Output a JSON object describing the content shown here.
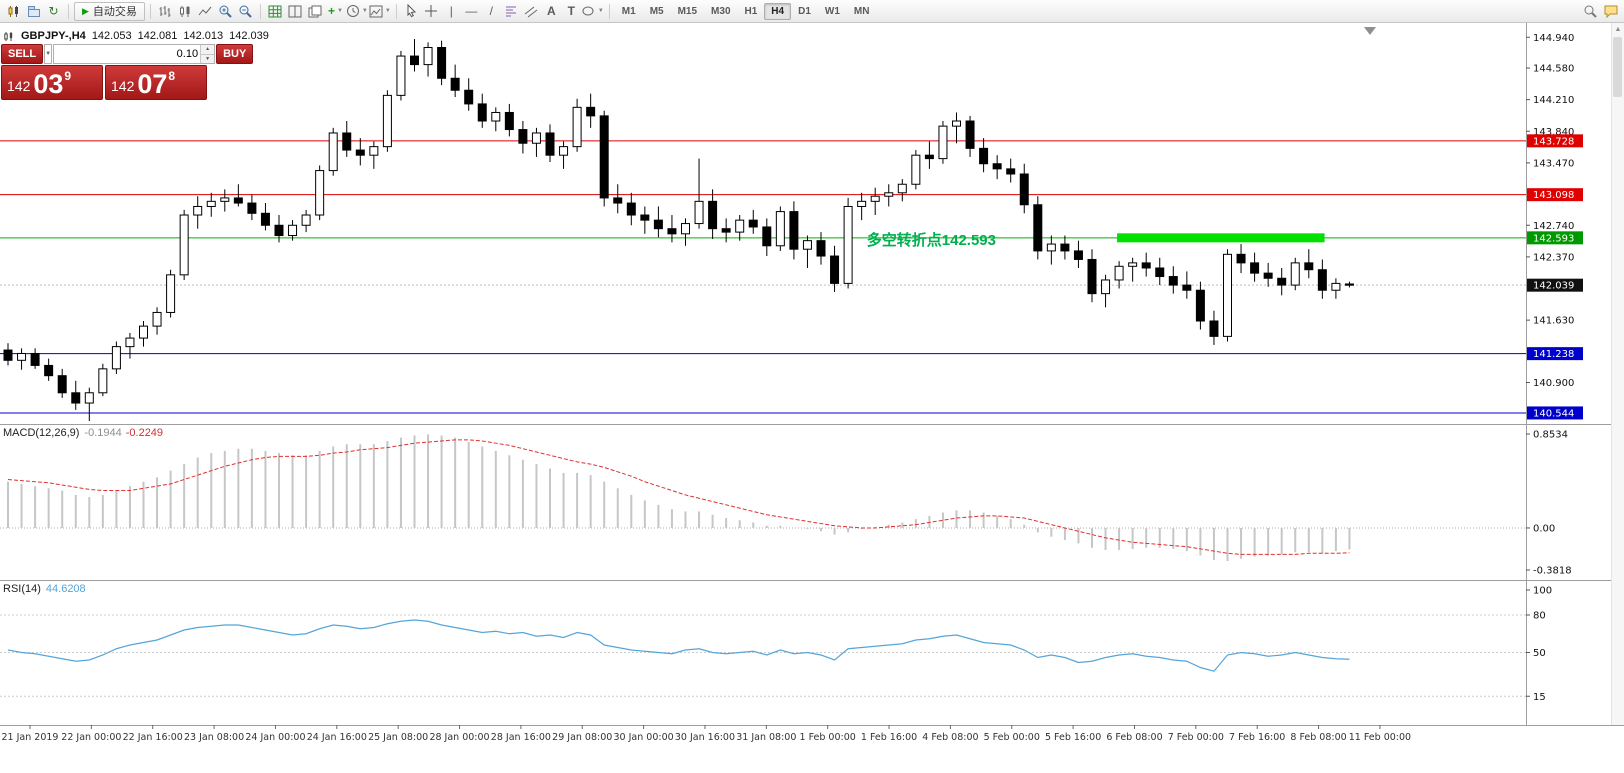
{
  "toolbar": {
    "auto_trading_label": "自动交易",
    "timeframes": [
      "M1",
      "M5",
      "M15",
      "M30",
      "H1",
      "H4",
      "D1",
      "W1",
      "MN"
    ],
    "active_timeframe": "H4"
  },
  "chart_header": {
    "symbol_period": "GBPJPY-,H4",
    "open": "142.053",
    "high": "142.081",
    "low": "142.013",
    "close": "142.039"
  },
  "trade_panel": {
    "sell_label": "SELL",
    "buy_label": "BUY",
    "volume": "0.10",
    "bid": {
      "prefix": "142",
      "big": "03",
      "sup": "9"
    },
    "ask": {
      "prefix": "142",
      "big": "07",
      "sup": "8"
    },
    "colors": {
      "light": "#cf3a3a",
      "dark": "#a31818",
      "border": "#871010"
    }
  },
  "chart_data": {
    "type": "candlestick",
    "symbol": "GBPJPY-",
    "timeframe": "H4",
    "price_range": {
      "max": 145.06,
      "min": 140.52
    },
    "current_price": 142.039,
    "scale_ticks": [
      144.94,
      144.58,
      144.21,
      143.84,
      143.47,
      142.74,
      142.37,
      141.63,
      140.9
    ],
    "price_badges": [
      {
        "value": "143.728",
        "bg": "#e00000"
      },
      {
        "value": "143.098",
        "bg": "#e00000"
      },
      {
        "value": "142.593",
        "bg": "#009900"
      },
      {
        "value": "142.039",
        "bg": "#101010"
      },
      {
        "value": "141.238",
        "bg": "#0000cd"
      },
      {
        "value": "140.544",
        "bg": "#0000cd"
      }
    ],
    "hlines": [
      {
        "price": 143.728,
        "color": "#d90000"
      },
      {
        "price": 143.098,
        "color": "#d90000"
      },
      {
        "price": 142.593,
        "color": "#00b300"
      },
      {
        "price": 141.238,
        "color": "#0000cc"
      },
      {
        "price": 140.544,
        "color": "#0000cc"
      }
    ],
    "green_zone": {
      "price": 142.593,
      "x_start_frac": 0.732,
      "x_end_frac": 0.868,
      "color": "#00e100"
    },
    "annotation": {
      "text": "多空转折点142.593",
      "color": "#00b050",
      "x_frac": 0.568,
      "price": 142.593
    },
    "candles": [
      [
        141.28,
        141.36,
        141.1,
        141.16
      ],
      [
        141.16,
        141.3,
        141.05,
        141.24
      ],
      [
        141.24,
        141.3,
        141.06,
        141.1
      ],
      [
        141.1,
        141.18,
        140.92,
        140.98
      ],
      [
        140.98,
        141.06,
        140.72,
        140.78
      ],
      [
        140.78,
        140.92,
        140.58,
        140.66
      ],
      [
        140.66,
        140.84,
        140.45,
        140.78
      ],
      [
        140.78,
        141.12,
        140.74,
        141.06
      ],
      [
        141.06,
        141.38,
        141.0,
        141.32
      ],
      [
        141.32,
        141.48,
        141.18,
        141.42
      ],
      [
        141.42,
        141.62,
        141.32,
        141.56
      ],
      [
        141.56,
        141.78,
        141.46,
        141.72
      ],
      [
        141.72,
        142.22,
        141.66,
        142.16
      ],
      [
        142.16,
        142.92,
        142.1,
        142.86
      ],
      [
        142.86,
        143.08,
        142.7,
        142.96
      ],
      [
        142.96,
        143.12,
        142.84,
        143.02
      ],
      [
        143.02,
        143.16,
        142.9,
        143.06
      ],
      [
        143.06,
        143.22,
        142.96,
        143.0
      ],
      [
        143.0,
        143.1,
        142.8,
        142.88
      ],
      [
        142.88,
        143.0,
        142.68,
        142.74
      ],
      [
        142.74,
        142.86,
        142.54,
        142.62
      ],
      [
        142.62,
        142.8,
        142.56,
        142.74
      ],
      [
        142.74,
        142.92,
        142.66,
        142.86
      ],
      [
        142.86,
        143.44,
        142.8,
        143.38
      ],
      [
        143.38,
        143.88,
        143.32,
        143.82
      ],
      [
        143.82,
        143.96,
        143.54,
        143.62
      ],
      [
        143.62,
        143.76,
        143.44,
        143.56
      ],
      [
        143.56,
        143.72,
        143.4,
        143.66
      ],
      [
        143.66,
        144.32,
        143.6,
        144.26
      ],
      [
        144.26,
        144.78,
        144.2,
        144.72
      ],
      [
        144.72,
        144.92,
        144.54,
        144.62
      ],
      [
        144.62,
        144.88,
        144.48,
        144.82
      ],
      [
        144.82,
        144.9,
        144.38,
        144.46
      ],
      [
        144.46,
        144.62,
        144.24,
        144.32
      ],
      [
        144.32,
        144.46,
        144.08,
        144.16
      ],
      [
        144.16,
        144.28,
        143.88,
        143.96
      ],
      [
        143.96,
        144.12,
        143.84,
        144.06
      ],
      [
        144.06,
        144.16,
        143.78,
        143.86
      ],
      [
        143.86,
        143.96,
        143.58,
        143.7
      ],
      [
        143.7,
        143.88,
        143.54,
        143.82
      ],
      [
        143.82,
        143.92,
        143.48,
        143.56
      ],
      [
        143.56,
        143.72,
        143.4,
        143.66
      ],
      [
        143.66,
        144.22,
        143.6,
        144.12
      ],
      [
        144.12,
        144.28,
        143.88,
        144.02
      ],
      [
        144.02,
        144.08,
        142.96,
        143.06
      ],
      [
        143.06,
        143.22,
        142.88,
        143.0
      ],
      [
        143.0,
        143.12,
        142.74,
        142.86
      ],
      [
        142.86,
        142.96,
        142.64,
        142.8
      ],
      [
        142.8,
        142.96,
        142.6,
        142.7
      ],
      [
        142.7,
        142.86,
        142.54,
        142.64
      ],
      [
        142.64,
        142.82,
        142.5,
        142.76
      ],
      [
        142.76,
        143.52,
        142.7,
        143.02
      ],
      [
        143.02,
        143.16,
        142.58,
        142.7
      ],
      [
        142.7,
        142.82,
        142.54,
        142.66
      ],
      [
        142.66,
        142.86,
        142.56,
        142.8
      ],
      [
        142.8,
        142.92,
        142.64,
        142.72
      ],
      [
        142.72,
        142.82,
        142.38,
        142.5
      ],
      [
        142.5,
        142.96,
        142.44,
        142.9
      ],
      [
        142.9,
        143.02,
        142.34,
        142.46
      ],
      [
        142.46,
        142.62,
        142.24,
        142.56
      ],
      [
        142.56,
        142.66,
        142.28,
        142.38
      ],
      [
        142.38,
        142.5,
        141.96,
        142.06
      ],
      [
        142.06,
        143.06,
        142.0,
        142.96
      ],
      [
        142.96,
        143.12,
        142.8,
        143.02
      ],
      [
        143.02,
        143.18,
        142.86,
        143.08
      ],
      [
        143.08,
        143.22,
        142.96,
        143.12
      ],
      [
        143.12,
        143.28,
        143.02,
        143.22
      ],
      [
        143.22,
        143.62,
        143.16,
        143.56
      ],
      [
        143.56,
        143.72,
        143.4,
        143.52
      ],
      [
        143.52,
        143.96,
        143.46,
        143.9
      ],
      [
        143.9,
        144.06,
        143.7,
        143.96
      ],
      [
        143.96,
        144.02,
        143.54,
        143.64
      ],
      [
        143.64,
        143.76,
        143.36,
        143.46
      ],
      [
        143.46,
        143.56,
        143.28,
        143.4
      ],
      [
        143.4,
        143.52,
        143.24,
        143.34
      ],
      [
        143.34,
        143.46,
        142.88,
        142.98
      ],
      [
        142.98,
        143.08,
        142.34,
        142.44
      ],
      [
        142.44,
        142.62,
        142.28,
        142.52
      ],
      [
        142.52,
        142.62,
        142.34,
        142.44
      ],
      [
        142.44,
        142.56,
        142.24,
        142.34
      ],
      [
        142.34,
        142.46,
        141.84,
        141.94
      ],
      [
        141.94,
        142.16,
        141.78,
        142.1
      ],
      [
        142.1,
        142.32,
        142.0,
        142.26
      ],
      [
        142.26,
        142.36,
        142.08,
        142.3
      ],
      [
        142.3,
        142.42,
        142.14,
        142.24
      ],
      [
        142.24,
        142.36,
        142.04,
        142.14
      ],
      [
        142.14,
        142.26,
        141.94,
        142.04
      ],
      [
        142.04,
        142.2,
        141.88,
        141.98
      ],
      [
        141.98,
        142.08,
        141.52,
        141.62
      ],
      [
        141.62,
        141.74,
        141.34,
        141.44
      ],
      [
        141.44,
        142.46,
        141.38,
        142.4
      ],
      [
        142.4,
        142.52,
        142.18,
        142.3
      ],
      [
        142.3,
        142.42,
        142.08,
        142.18
      ],
      [
        142.18,
        142.3,
        142.02,
        142.12
      ],
      [
        142.12,
        142.24,
        141.92,
        142.04
      ],
      [
        142.04,
        142.36,
        141.98,
        142.3
      ],
      [
        142.3,
        142.46,
        142.12,
        142.22
      ],
      [
        142.22,
        142.34,
        141.88,
        141.98
      ],
      [
        141.98,
        142.12,
        141.88,
        142.06
      ],
      [
        142.053,
        142.081,
        142.013,
        142.039
      ]
    ],
    "macd": {
      "label": "MACD(12,26,9)",
      "value_main": "-0.1944",
      "value_signal": "-0.2249",
      "range": {
        "max": 0.8534,
        "min": -0.3818
      },
      "scale_labels": [
        "0.8534",
        "0.00",
        "-0.3818"
      ],
      "hist_color": "#c6c6c6",
      "signal_color": "#e03030",
      "histogram": [
        0.42,
        0.4,
        0.38,
        0.36,
        0.34,
        0.3,
        0.28,
        0.3,
        0.34,
        0.38,
        0.42,
        0.46,
        0.52,
        0.58,
        0.64,
        0.68,
        0.7,
        0.72,
        0.72,
        0.7,
        0.68,
        0.66,
        0.66,
        0.7,
        0.74,
        0.76,
        0.76,
        0.76,
        0.79,
        0.82,
        0.84,
        0.85,
        0.84,
        0.82,
        0.78,
        0.74,
        0.7,
        0.66,
        0.62,
        0.58,
        0.54,
        0.5,
        0.5,
        0.48,
        0.42,
        0.36,
        0.3,
        0.25,
        0.21,
        0.17,
        0.15,
        0.15,
        0.12,
        0.09,
        0.07,
        0.05,
        0.02,
        0.02,
        0.0,
        -0.01,
        -0.03,
        -0.06,
        -0.04,
        -0.01,
        0.01,
        0.03,
        0.05,
        0.08,
        0.11,
        0.14,
        0.16,
        0.16,
        0.14,
        0.11,
        0.08,
        0.03,
        -0.04,
        -0.08,
        -0.11,
        -0.14,
        -0.18,
        -0.2,
        -0.2,
        -0.19,
        -0.18,
        -0.18,
        -0.19,
        -0.21,
        -0.25,
        -0.29,
        -0.3,
        -0.28,
        -0.26,
        -0.25,
        -0.24,
        -0.22,
        -0.22,
        -0.23,
        -0.21,
        -0.1944
      ],
      "signal": [
        0.44,
        0.43,
        0.42,
        0.41,
        0.39,
        0.37,
        0.35,
        0.34,
        0.34,
        0.34,
        0.36,
        0.38,
        0.4,
        0.44,
        0.48,
        0.52,
        0.56,
        0.59,
        0.62,
        0.64,
        0.65,
        0.65,
        0.65,
        0.66,
        0.68,
        0.69,
        0.71,
        0.72,
        0.73,
        0.75,
        0.77,
        0.78,
        0.79,
        0.8,
        0.8,
        0.79,
        0.77,
        0.75,
        0.72,
        0.69,
        0.66,
        0.63,
        0.6,
        0.58,
        0.55,
        0.51,
        0.47,
        0.42,
        0.38,
        0.34,
        0.3,
        0.27,
        0.24,
        0.21,
        0.18,
        0.15,
        0.12,
        0.1,
        0.08,
        0.06,
        0.04,
        0.02,
        0.01,
        0.0,
        0.0,
        0.01,
        0.02,
        0.03,
        0.05,
        0.07,
        0.09,
        0.1,
        0.11,
        0.11,
        0.1,
        0.09,
        0.06,
        0.03,
        0.0,
        -0.03,
        -0.06,
        -0.09,
        -0.11,
        -0.13,
        -0.14,
        -0.15,
        -0.16,
        -0.17,
        -0.19,
        -0.21,
        -0.23,
        -0.24,
        -0.24,
        -0.24,
        -0.24,
        -0.24,
        -0.23,
        -0.23,
        -0.23,
        -0.2249
      ]
    },
    "rsi": {
      "label": "RSI(14)",
      "value": "44.6208",
      "color": "#55a5d9",
      "levels": [
        80,
        50,
        15
      ],
      "scale_labels": [
        "100",
        "80",
        "50",
        "15"
      ],
      "values": [
        52,
        50,
        49,
        47,
        45,
        43,
        44,
        48,
        53,
        56,
        58,
        60,
        64,
        68,
        70,
        71,
        72,
        72,
        70,
        68,
        66,
        64,
        65,
        69,
        72,
        71,
        69,
        70,
        73,
        75,
        76,
        75,
        72,
        70,
        68,
        66,
        67,
        65,
        66,
        63,
        64,
        62,
        66,
        64,
        56,
        54,
        52,
        51,
        50,
        49,
        52,
        53,
        50,
        49,
        50,
        51,
        48,
        52,
        49,
        50,
        48,
        44,
        53,
        54,
        55,
        56,
        57,
        60,
        61,
        63,
        64,
        61,
        58,
        57,
        56,
        52,
        46,
        48,
        46,
        42,
        43,
        46,
        48,
        49,
        47,
        46,
        44,
        43,
        38,
        35,
        48,
        50,
        49,
        47,
        48,
        50,
        48,
        46,
        45,
        44.62
      ]
    },
    "time_labels": [
      "21 Jan 2019",
      "22 Jan 00:00",
      "22 Jan 16:00",
      "23 Jan 08:00",
      "24 Jan 00:00",
      "24 Jan 16:00",
      "25 Jan 08:00",
      "28 Jan 00:00",
      "28 Jan 16:00",
      "29 Jan 08:00",
      "30 Jan 00:00",
      "30 Jan 16:00",
      "31 Jan 08:00",
      "1 Feb 00:00",
      "1 Feb 16:00",
      "4 Feb 08:00",
      "5 Feb 00:00",
      "5 Feb 16:00",
      "6 Feb 08:00",
      "7 Feb 00:00",
      "7 Feb 16:00",
      "8 Feb 08:00",
      "11 Feb 00:00"
    ]
  }
}
